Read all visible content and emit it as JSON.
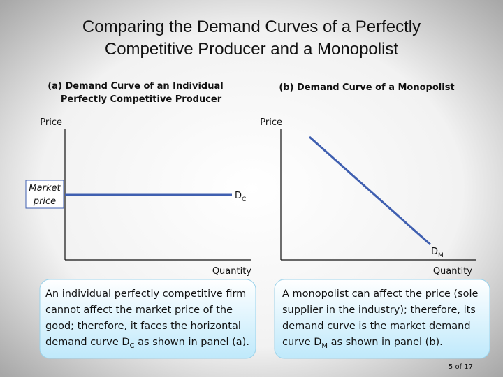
{
  "title": {
    "line1": "Comparing the Demand Curves of a Perfectly",
    "line2": "Competitive Producer and a Monopolist"
  },
  "panel_a": {
    "title_line1": "(a) Demand Curve of an Individual",
    "title_line2": "Perfectly Competitive Producer",
    "y_label": "Price",
    "x_label": "Quantity",
    "market_price_line1": "Market",
    "market_price_line2": "price",
    "curve_label": {
      "main": "D",
      "sub": "C"
    }
  },
  "panel_b": {
    "title": "(b) Demand Curve of a Monopolist",
    "y_label": "Price",
    "x_label": "Quantity",
    "curve_label": {
      "main": "D",
      "sub": "M"
    }
  },
  "captions": [
    {
      "lines": [
        "An individual perfectly competitive firm",
        "cannot affect the market price of the",
        "good; therefore, it faces the horizontal",
        "demand curve "
      ],
      "sub_main": "D",
      "sub": "C",
      "tail": " as shown in panel (a)."
    },
    {
      "lines": [
        "A monopolist can affect the price (sole",
        "supplier in the industry); therefore, its",
        "demand curve is the market demand",
        "curve "
      ],
      "sub_main": "D",
      "sub": "M",
      "tail": " as shown in panel (b)."
    }
  ],
  "page_number": "5 of 17"
}
